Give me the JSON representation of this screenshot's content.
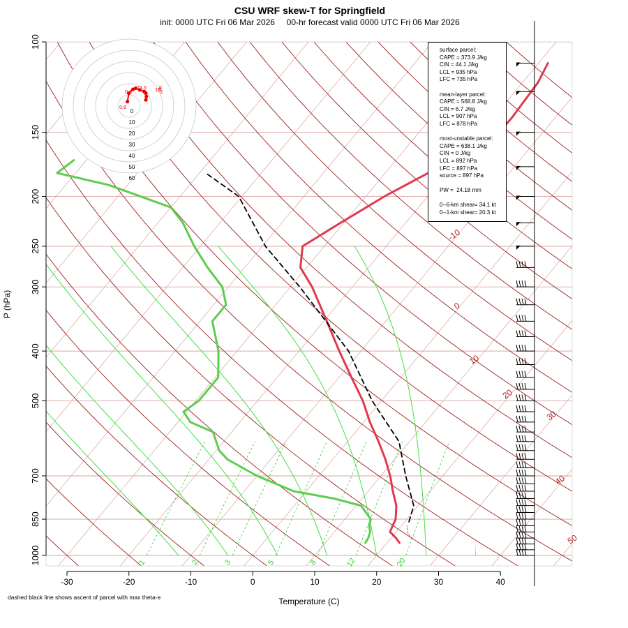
{
  "title": "CSU WRF skew-T for Springfield",
  "subtitle": "init: 0000 UTC Fri 06 Mar 2026     00-hr forecast valid 0000 UTC Fri 06 Mar 2026",
  "footnote": "dashed black line shows ascent of parcel with max theta-e",
  "colors": {
    "temperature": "#e0394f",
    "dewpoint": "#5ccd4e",
    "isotherm": "#d9a3a3",
    "dry_adiabat": "#9b2020",
    "moist_adiabat": "#40e040",
    "mixing_ratio": "#30cc30",
    "parcel": "#000000",
    "hodograph": "#ee0000"
  },
  "info_box": {
    "surface": [
      "surface parcel:",
      "CAPE = 373.9 J/kg",
      "CIN = 44.1 J/kg",
      "LCL = 935 hPa",
      "LFC = 735 hPa"
    ],
    "mixed_layer": [
      "mean-layer parcel:",
      "CAPE = 568.8 J/kg",
      "CIN = 6.7 J/kg",
      "LCL = 907 hPa",
      "LFC = 878 hPa"
    ],
    "most_unstable": [
      "most-unstable parcel:",
      "CAPE = 638.1 J/kg",
      "CIN = 0 J/kg",
      "LCL = 892 hPa",
      "LFC = 897 hPa",
      "source = 897 hPa"
    ],
    "pw": "PW =  24.18 mm",
    "shear_6km": "0--6-km shear= 34.1 kt",
    "shear_1km": "0--1-km shear= 20.3 kt"
  },
  "chart_data": {
    "type": "skew-t",
    "xlabel": "Temperature (C)",
    "ylabel": "P (hPa)",
    "xlim": [
      -33,
      45
    ],
    "ylim": [
      1050,
      100
    ],
    "pressure_ticks": [
      100,
      150,
      200,
      250,
      300,
      400,
      500,
      700,
      850,
      1000
    ],
    "pressure_tick_labels": [
      "100",
      "150",
      "200",
      "250",
      "300",
      "400",
      "500",
      "700",
      "850",
      "1000"
    ],
    "temperature_ticks": [
      -30,
      -20,
      -10,
      0,
      10,
      20,
      30,
      40
    ],
    "temperature_tick_labels": [
      "-30",
      "-20",
      "-10",
      "0",
      "10",
      "20",
      "30",
      "40"
    ],
    "isotherm_labels": [
      {
        "t": -10,
        "p": 240,
        "label": "-10"
      },
      {
        "t": 0,
        "p": 330,
        "label": "0"
      },
      {
        "t": 10,
        "p": 420,
        "label": "10"
      },
      {
        "t": 20,
        "p": 490,
        "label": "20"
      },
      {
        "t": 30,
        "p": 540,
        "label": "30"
      },
      {
        "t": 40,
        "p": 720,
        "label": "40"
      },
      {
        "t": 50,
        "p": 940,
        "label": "50"
      }
    ],
    "mixing_ratio_labels": [
      "1",
      "2",
      "3",
      "5",
      "8",
      "12",
      "20"
    ],
    "mixing_ratio_values": [
      1,
      2,
      3,
      5,
      8,
      12,
      20
    ],
    "temperature_profile": [
      {
        "p": 945,
        "t": 22.0
      },
      {
        "p": 925,
        "t": 20.8
      },
      {
        "p": 900,
        "t": 19.0
      },
      {
        "p": 875,
        "t": 18.6
      },
      {
        "p": 850,
        "t": 18.2
      },
      {
        "p": 800,
        "t": 16.5
      },
      {
        "p": 750,
        "t": 14.0
      },
      {
        "p": 700,
        "t": 11.5
      },
      {
        "p": 650,
        "t": 8.5
      },
      {
        "p": 600,
        "t": 5.0
      },
      {
        "p": 550,
        "t": 1.0
      },
      {
        "p": 500,
        "t": -3.0
      },
      {
        "p": 450,
        "t": -8.0
      },
      {
        "p": 400,
        "t": -13.5
      },
      {
        "p": 350,
        "t": -19.5
      },
      {
        "p": 300,
        "t": -26.5
      },
      {
        "p": 275,
        "t": -31.0
      },
      {
        "p": 250,
        "t": -33.5
      },
      {
        "p": 225,
        "t": -30.5
      },
      {
        "p": 200,
        "t": -27.0
      },
      {
        "p": 175,
        "t": -22.0
      },
      {
        "p": 155,
        "t": -17.0
      },
      {
        "p": 140,
        "t": -17.0
      },
      {
        "p": 120,
        "t": -17.5
      },
      {
        "p": 110,
        "t": -18.5
      }
    ],
    "dewpoint_profile": [
      {
        "p": 945,
        "t": 16.5
      },
      {
        "p": 925,
        "t": 16.3
      },
      {
        "p": 900,
        "t": 15.8
      },
      {
        "p": 875,
        "t": 14.8
      },
      {
        "p": 850,
        "t": 14.2
      },
      {
        "p": 800,
        "t": 10.8
      },
      {
        "p": 775,
        "t": 5.5
      },
      {
        "p": 750,
        "t": -2.0
      },
      {
        "p": 700,
        "t": -10.0
      },
      {
        "p": 650,
        "t": -17.0
      },
      {
        "p": 625,
        "t": -19.5
      },
      {
        "p": 575,
        "t": -23.0
      },
      {
        "p": 550,
        "t": -28.0
      },
      {
        "p": 525,
        "t": -30.5
      },
      {
        "p": 500,
        "t": -29.5
      },
      {
        "p": 450,
        "t": -29.5
      },
      {
        "p": 400,
        "t": -33.0
      },
      {
        "p": 350,
        "t": -38.0
      },
      {
        "p": 325,
        "t": -38.0
      },
      {
        "p": 300,
        "t": -41.0
      },
      {
        "p": 275,
        "t": -46.0
      },
      {
        "p": 250,
        "t": -51.0
      },
      {
        "p": 225,
        "t": -56.0
      },
      {
        "p": 210,
        "t": -60.0
      },
      {
        "p": 190,
        "t": -73.0
      },
      {
        "p": 180,
        "t": -83.0
      },
      {
        "p": 170,
        "t": -82.0
      }
    ],
    "parcel_profile": [
      {
        "p": 860,
        "t": 20.7
      },
      {
        "p": 800,
        "t": 19.3
      },
      {
        "p": 700,
        "t": 14.0
      },
      {
        "p": 600,
        "t": 8.3
      },
      {
        "p": 500,
        "t": -1.5
      },
      {
        "p": 400,
        "t": -12.0
      },
      {
        "p": 300,
        "t": -28.5
      },
      {
        "p": 250,
        "t": -39.5
      },
      {
        "p": 200,
        "t": -50.5
      },
      {
        "p": 180,
        "t": -59.0
      }
    ],
    "surface_parcel_dashed": [
      {
        "p": 930,
        "t": 23.5
      },
      {
        "p": 900,
        "t": 21.8
      },
      {
        "p": 875,
        "t": 20.9
      }
    ],
    "wind_barb_pressures": [
      1000,
      975,
      950,
      925,
      900,
      875,
      850,
      825,
      800,
      775,
      750,
      725,
      700,
      675,
      650,
      625,
      600,
      575,
      550,
      525,
      500,
      475,
      450,
      425,
      400,
      375,
      350,
      325,
      300,
      275,
      250,
      225,
      200,
      175,
      150,
      125,
      110
    ],
    "hodograph": {
      "ring_labels": [
        "0",
        "10",
        "20",
        "30",
        "40",
        "50",
        "60"
      ],
      "point_labels": [
        "0.8",
        "0.3",
        "1",
        "1.5",
        "6",
        "3",
        "9",
        "12"
      ],
      "points": [
        {
          "u": -1.5,
          "v": 4.0
        },
        {
          "u": -0.2,
          "v": 11.5
        },
        {
          "u": 3.5,
          "v": 15.0
        },
        {
          "u": 6.0,
          "v": 16.0
        },
        {
          "u": 9.5,
          "v": 14.5
        },
        {
          "u": 13.5,
          "v": 13.0
        },
        {
          "u": 15.0,
          "v": 11.5
        },
        {
          "u": 15.5,
          "v": 8.5
        },
        {
          "u": 15.0,
          "v": 5.5
        }
      ]
    }
  }
}
